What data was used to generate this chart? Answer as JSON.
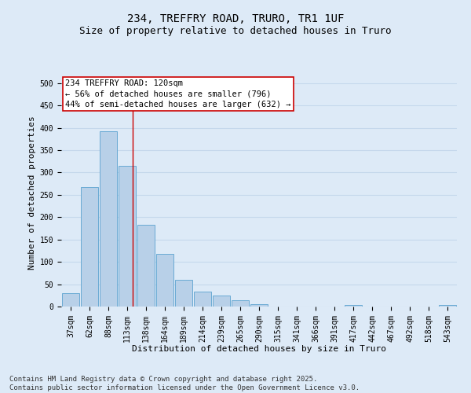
{
  "title_line1": "234, TREFFRY ROAD, TRURO, TR1 1UF",
  "title_line2": "Size of property relative to detached houses in Truro",
  "xlabel": "Distribution of detached houses by size in Truro",
  "ylabel": "Number of detached properties",
  "categories": [
    "37sqm",
    "62sqm",
    "88sqm",
    "113sqm",
    "138sqm",
    "164sqm",
    "189sqm",
    "214sqm",
    "239sqm",
    "265sqm",
    "290sqm",
    "315sqm",
    "341sqm",
    "366sqm",
    "391sqm",
    "417sqm",
    "442sqm",
    "467sqm",
    "492sqm",
    "518sqm",
    "543sqm"
  ],
  "values": [
    30,
    267,
    393,
    314,
    183,
    118,
    59,
    33,
    25,
    14,
    6,
    0,
    0,
    0,
    0,
    4,
    0,
    0,
    0,
    0,
    3
  ],
  "bar_color": "#b8d0e8",
  "bar_edge_color": "#6aaad4",
  "grid_color": "#c5d8ec",
  "background_color": "#ddeaf7",
  "vline_x_index": 3.28,
  "vline_color": "#cc0000",
  "annotation_text": "234 TREFFRY ROAD: 120sqm\n← 56% of detached houses are smaller (796)\n44% of semi-detached houses are larger (632) →",
  "annotation_box_color": "#ffffff",
  "annotation_box_edge": "#cc0000",
  "ylim": [
    0,
    510
  ],
  "yticks": [
    0,
    50,
    100,
    150,
    200,
    250,
    300,
    350,
    400,
    450,
    500
  ],
  "footnote": "Contains HM Land Registry data © Crown copyright and database right 2025.\nContains public sector information licensed under the Open Government Licence v3.0.",
  "title_fontsize": 10,
  "subtitle_fontsize": 9,
  "axis_label_fontsize": 8,
  "tick_fontsize": 7,
  "annotation_fontsize": 7.5,
  "footnote_fontsize": 6.5
}
